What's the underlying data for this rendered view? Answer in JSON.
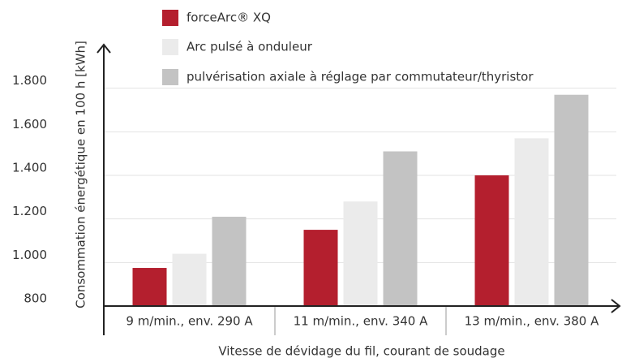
{
  "chart_data": {
    "type": "bar",
    "y_label": "Consommation énergétique en 100 h [kWh]",
    "x_label": "Vitesse de dévidage du fil, courant de soudage",
    "categories": [
      "9 m/min., env. 290 A",
      "11 m/min., env. 340 A",
      "13 m/min., env. 380 A"
    ],
    "series": [
      {
        "name": "forceArc® XQ",
        "color": "#b41f2e",
        "values": [
          975,
          1150,
          1400
        ]
      },
      {
        "name": "Arc pulsé à onduleur",
        "color": "#ebebeb",
        "values": [
          1040,
          1280,
          1570
        ]
      },
      {
        "name": "pulvérisation axiale à réglage par commutateur/thyristor",
        "color": "#c3c3c3",
        "values": [
          1210,
          1510,
          1770
        ]
      }
    ],
    "ylim": [
      800,
      2000
    ],
    "yticks": [
      800,
      {
        "value": 1000,
        "label": "1.000"
      },
      {
        "value": 1200,
        "label": "1.200"
      },
      {
        "value": 1400,
        "label": "1.400"
      },
      {
        "value": 1600,
        "label": "1.600"
      },
      {
        "value": 1800,
        "label": "1.800"
      }
    ],
    "grid": true,
    "legend": "top"
  }
}
